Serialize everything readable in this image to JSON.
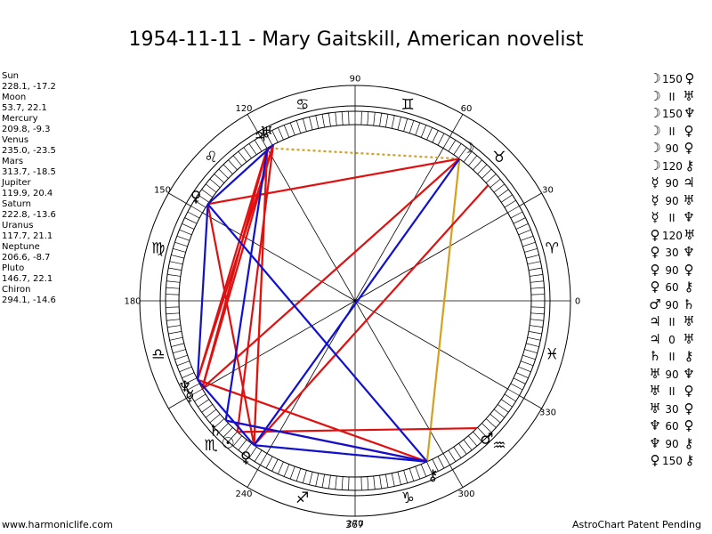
{
  "title": "1954-11-11 - Mary Gaitskill, American novelist",
  "planets": [
    {
      "name": "Sun",
      "coords": "228.1, -17.2"
    },
    {
      "name": "Moon",
      "coords": "53.7, 22.1"
    },
    {
      "name": "Mercury",
      "coords": "209.8, -9.3"
    },
    {
      "name": "Venus",
      "coords": "235.0, -23.5"
    },
    {
      "name": "Mars",
      "coords": "313.7, -18.5"
    },
    {
      "name": "Jupiter",
      "coords": "119.9, 20.4"
    },
    {
      "name": "Saturn",
      "coords": "222.8, -13.6"
    },
    {
      "name": "Uranus",
      "coords": "117.7, 21.1"
    },
    {
      "name": "Neptune",
      "coords": "206.6, -8.7"
    },
    {
      "name": "Pluto",
      "coords": "146.7, 22.1"
    },
    {
      "name": "Chiron",
      "coords": "294.1, -14.6"
    }
  ],
  "aspects": [
    {
      "p1": "☽",
      "aspect": "150",
      "p2": "♀"
    },
    {
      "p1": "☽",
      "aspect": "II",
      "p2": "♅"
    },
    {
      "p1": "☽",
      "aspect": "150",
      "p2": "♆"
    },
    {
      "p1": "☽",
      "aspect": "II",
      "p2": "♀"
    },
    {
      "p1": "☽",
      "aspect": "90",
      "p2": "♀"
    },
    {
      "p1": "☽",
      "aspect": "120",
      "p2": "⚷"
    },
    {
      "p1": "☿",
      "aspect": "90",
      "p2": "♃"
    },
    {
      "p1": "☿",
      "aspect": "90",
      "p2": "♅"
    },
    {
      "p1": "☿",
      "aspect": "II",
      "p2": "♆"
    },
    {
      "p1": "♀",
      "aspect": "120",
      "p2": "♅"
    },
    {
      "p1": "♀",
      "aspect": "30",
      "p2": "♆"
    },
    {
      "p1": "♀",
      "aspect": "90",
      "p2": "♀"
    },
    {
      "p1": "♀",
      "aspect": "60",
      "p2": "⚷"
    },
    {
      "p1": "♂",
      "aspect": "90",
      "p2": "♄"
    },
    {
      "p1": "♃",
      "aspect": "II",
      "p2": "♅"
    },
    {
      "p1": "♃",
      "aspect": "0",
      "p2": "♅"
    },
    {
      "p1": "♄",
      "aspect": "II",
      "p2": "⚷"
    },
    {
      "p1": "♅",
      "aspect": "90",
      "p2": "♆"
    },
    {
      "p1": "♅",
      "aspect": "II",
      "p2": "♀"
    },
    {
      "p1": "♅",
      "aspect": "30",
      "p2": "♀"
    },
    {
      "p1": "♆",
      "aspect": "60",
      "p2": "♀"
    },
    {
      "p1": "♆",
      "aspect": "90",
      "p2": "⚷"
    },
    {
      "p1": "♀",
      "aspect": "150",
      "p2": "⚷"
    }
  ],
  "wheel": {
    "degree_labels": [
      {
        "deg": 0,
        "text": "0"
      },
      {
        "deg": 30,
        "text": "30"
      },
      {
        "deg": 60,
        "text": "60"
      },
      {
        "deg": 90,
        "text": "90"
      },
      {
        "deg": 120,
        "text": "120"
      },
      {
        "deg": 150,
        "text": "150"
      },
      {
        "deg": 180,
        "text": "180"
      },
      {
        "deg": 240,
        "text": "240"
      },
      {
        "deg": 270,
        "text": "270"
      },
      {
        "deg": 300,
        "text": "300"
      },
      {
        "deg": 330,
        "text": "330"
      }
    ],
    "signs": [
      {
        "deg": 15,
        "glyph": "♈"
      },
      {
        "deg": 45,
        "glyph": "♉"
      },
      {
        "deg": 75,
        "glyph": "♊"
      },
      {
        "deg": 105,
        "glyph": "♋"
      },
      {
        "deg": 135,
        "glyph": "♌"
      },
      {
        "deg": 165,
        "glyph": "♍"
      },
      {
        "deg": 195,
        "glyph": "♎"
      },
      {
        "deg": 225,
        "glyph": "♏"
      },
      {
        "deg": 255,
        "glyph": "♐"
      },
      {
        "deg": 285,
        "glyph": "♑"
      },
      {
        "deg": 315,
        "glyph": "♒"
      },
      {
        "deg": 345,
        "glyph": "♓"
      }
    ],
    "bodies": [
      {
        "deg": 228.1,
        "glyph": "☉"
      },
      {
        "deg": 53.7,
        "glyph": "☽"
      },
      {
        "deg": 209.8,
        "glyph": "☿"
      },
      {
        "deg": 235.0,
        "glyph": "♀"
      },
      {
        "deg": 313.7,
        "glyph": "♂"
      },
      {
        "deg": 119.9,
        "glyph": "♃"
      },
      {
        "deg": 222.8,
        "glyph": "♄"
      },
      {
        "deg": 117.7,
        "glyph": "♅"
      },
      {
        "deg": 206.6,
        "glyph": "♆"
      },
      {
        "deg": 146.7,
        "glyph": "♀"
      },
      {
        "deg": 294.1,
        "glyph": "⚷"
      }
    ],
    "lines": [
      {
        "a": 53.7,
        "b": 119.9,
        "color": "#d4a020",
        "dotted": true
      },
      {
        "a": 53.7,
        "b": 294.1,
        "color": "#d4a020",
        "dotted": false
      },
      {
        "a": 119.9,
        "b": 235.0,
        "color": "#d4a020",
        "dotted": false
      },
      {
        "a": 235.0,
        "b": 294.1,
        "color": "#d4a020",
        "dotted": true
      },
      {
        "a": 53.7,
        "b": 146.7,
        "color": "#e01010",
        "dotted": false
      },
      {
        "a": 53.7,
        "b": 209.8,
        "color": "#e01010",
        "dotted": false
      },
      {
        "a": 119.9,
        "b": 209.8,
        "color": "#e01010",
        "dotted": false
      },
      {
        "a": 117.7,
        "b": 206.6,
        "color": "#e01010",
        "dotted": false
      },
      {
        "a": 117.7,
        "b": 209.8,
        "color": "#e01010",
        "dotted": false
      },
      {
        "a": 119.9,
        "b": 206.6,
        "color": "#e01010",
        "dotted": false
      },
      {
        "a": 146.7,
        "b": 235.0,
        "color": "#e01010",
        "dotted": false
      },
      {
        "a": 228.1,
        "b": 313.7,
        "color": "#e01010",
        "dotted": false
      },
      {
        "a": 206.6,
        "b": 294.1,
        "color": "#e01010",
        "dotted": false
      },
      {
        "a": 222.8,
        "b": 294.1,
        "color": "#e01010",
        "dotted": false
      },
      {
        "a": 235.0,
        "b": 41.0,
        "color": "#e01010",
        "dotted": false
      },
      {
        "a": 119.9,
        "b": 235.0,
        "color": "#e01010",
        "dotted": false
      },
      {
        "a": 117.7,
        "b": 228.1,
        "color": "#e01010",
        "dotted": false
      },
      {
        "a": 53.7,
        "b": 235.0,
        "color": "#1010d0",
        "dotted": false
      },
      {
        "a": 117.7,
        "b": 146.7,
        "color": "#1010d0",
        "dotted": false
      },
      {
        "a": 119.9,
        "b": 222.8,
        "color": "#1010d0",
        "dotted": false
      },
      {
        "a": 146.7,
        "b": 206.6,
        "color": "#1010d0",
        "dotted": false
      },
      {
        "a": 146.7,
        "b": 294.1,
        "color": "#1010d0",
        "dotted": false
      },
      {
        "a": 206.6,
        "b": 235.0,
        "color": "#1010d0",
        "dotted": false
      },
      {
        "a": 222.8,
        "b": 294.1,
        "color": "#1010d0",
        "dotted": false
      },
      {
        "a": 235.0,
        "b": 294.1,
        "color": "#1010d0",
        "dotted": false
      }
    ]
  },
  "footer": {
    "left": "www.harmoniclife.com",
    "mid": "367",
    "right": "AstroChart Patent Pending"
  }
}
